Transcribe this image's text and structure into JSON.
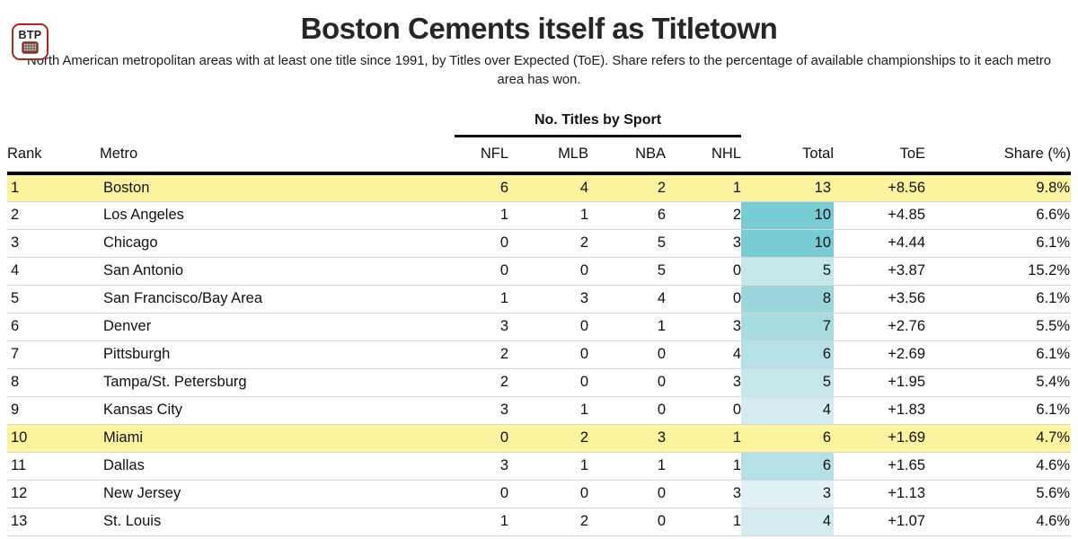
{
  "logo": {
    "text": "BTP",
    "icon": "hockey-goal-net-icon"
  },
  "header": {
    "title": "Boston Cements itself as Titletown",
    "subtitle": "North American metropolitan areas with at least one title since 1991, by Titles over Expected (ToE). Share refers to the percentage of available championships to it each metro area has won."
  },
  "colors": {
    "highlight_yellow": "#fcf39e",
    "logo_border_red": "#a32d22",
    "header_rule_black": "#000000",
    "row_divider_gray": "#d8d8d8",
    "total_heat_max_teal": "#7accd4",
    "total_heat_min_teal": "#e2f2f4"
  },
  "chart_data": {
    "type": "table",
    "title": "Boston Cements itself as Titletown",
    "subtitle": "North American metropolitan areas with at least one title since 1991, by Titles over Expected (ToE). Share refers to the percentage of available championships to it each metro area has won.",
    "spanner_label": "No. Titles by Sport",
    "spanner_columns": [
      "NFL",
      "MLB",
      "NBA",
      "NHL"
    ],
    "columns": [
      "Rank",
      "Metro",
      "NFL",
      "MLB",
      "NBA",
      "NHL",
      "Total",
      "ToE",
      "Share (%)"
    ],
    "rows": [
      {
        "rank": "1",
        "metro": "Boston",
        "nfl": "6",
        "mlb": "4",
        "nba": "2",
        "nhl": "1",
        "total": "13",
        "toe": "+8.56",
        "share": "9.8%",
        "highlight": true,
        "total_bg": ""
      },
      {
        "rank": "2",
        "metro": "Los Angeles",
        "nfl": "1",
        "mlb": "1",
        "nba": "6",
        "nhl": "2",
        "total": "10",
        "toe": "+4.85",
        "share": "6.6%",
        "highlight": false,
        "total_bg": "#7accd4"
      },
      {
        "rank": "3",
        "metro": "Chicago",
        "nfl": "0",
        "mlb": "2",
        "nba": "5",
        "nhl": "3",
        "total": "10",
        "toe": "+4.44",
        "share": "6.1%",
        "highlight": false,
        "total_bg": "#7accd4"
      },
      {
        "rank": "4",
        "metro": "San Antonio",
        "nfl": "0",
        "mlb": "0",
        "nba": "5",
        "nhl": "0",
        "total": "5",
        "toe": "+3.87",
        "share": "15.2%",
        "highlight": false,
        "total_bg": "#c6e7ea"
      },
      {
        "rank": "5",
        "metro": "San Francisco/Bay Area",
        "nfl": "1",
        "mlb": "3",
        "nba": "4",
        "nhl": "0",
        "total": "8",
        "toe": "+3.56",
        "share": "6.1%",
        "highlight": false,
        "total_bg": "#9bd6dc"
      },
      {
        "rank": "6",
        "metro": "Denver",
        "nfl": "3",
        "mlb": "0",
        "nba": "1",
        "nhl": "3",
        "total": "7",
        "toe": "+2.76",
        "share": "5.5%",
        "highlight": false,
        "total_bg": "#a7dbe0"
      },
      {
        "rank": "7",
        "metro": "Pittsburgh",
        "nfl": "2",
        "mlb": "0",
        "nba": "0",
        "nhl": "4",
        "total": "6",
        "toe": "+2.69",
        "share": "6.1%",
        "highlight": false,
        "total_bg": "#b5e0e5"
      },
      {
        "rank": "8",
        "metro": "Tampa/St. Petersburg",
        "nfl": "2",
        "mlb": "0",
        "nba": "0",
        "nhl": "3",
        "total": "5",
        "toe": "+1.95",
        "share": "5.4%",
        "highlight": false,
        "total_bg": "#c6e7ea"
      },
      {
        "rank": "9",
        "metro": "Kansas City",
        "nfl": "3",
        "mlb": "1",
        "nba": "0",
        "nhl": "0",
        "total": "4",
        "toe": "+1.83",
        "share": "6.1%",
        "highlight": false,
        "total_bg": "#d4ecef"
      },
      {
        "rank": "10",
        "metro": "Miami",
        "nfl": "0",
        "mlb": "2",
        "nba": "3",
        "nhl": "1",
        "total": "6",
        "toe": "+1.69",
        "share": "4.7%",
        "highlight": true,
        "total_bg": ""
      },
      {
        "rank": "11",
        "metro": "Dallas",
        "nfl": "3",
        "mlb": "1",
        "nba": "1",
        "nhl": "1",
        "total": "6",
        "toe": "+1.65",
        "share": "4.6%",
        "highlight": false,
        "total_bg": "#b5e0e5"
      },
      {
        "rank": "12",
        "metro": "New Jersey",
        "nfl": "0",
        "mlb": "0",
        "nba": "0",
        "nhl": "3",
        "total": "3",
        "toe": "+1.13",
        "share": "5.6%",
        "highlight": false,
        "total_bg": "#e2f2f4"
      },
      {
        "rank": "13",
        "metro": "St. Louis",
        "nfl": "1",
        "mlb": "2",
        "nba": "0",
        "nhl": "1",
        "total": "4",
        "toe": "+1.07",
        "share": "4.6%",
        "highlight": false,
        "total_bg": "#d4ecef"
      }
    ]
  }
}
